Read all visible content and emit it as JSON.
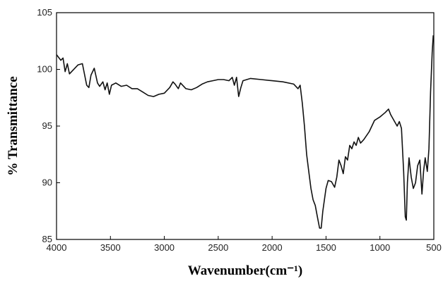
{
  "chart_data": {
    "type": "line",
    "xlabel": "Wavenumber(cm⁻¹)",
    "ylabel": "% Transmittance",
    "x": [
      4000,
      3960,
      3940,
      3920,
      3900,
      3880,
      3850,
      3800,
      3760,
      3720,
      3700,
      3680,
      3650,
      3620,
      3600,
      3570,
      3550,
      3530,
      3510,
      3490,
      3450,
      3400,
      3350,
      3300,
      3250,
      3200,
      3150,
      3100,
      3050,
      3000,
      2950,
      2920,
      2900,
      2870,
      2850,
      2800,
      2750,
      2700,
      2650,
      2600,
      2550,
      2500,
      2450,
      2400,
      2370,
      2350,
      2330,
      2310,
      2290,
      2270,
      2200,
      2100,
      2000,
      1900,
      1800,
      1760,
      1740,
      1720,
      1700,
      1680,
      1660,
      1640,
      1620,
      1600,
      1580,
      1560,
      1545,
      1530,
      1500,
      1480,
      1450,
      1420,
      1400,
      1380,
      1360,
      1340,
      1320,
      1300,
      1280,
      1260,
      1240,
      1220,
      1200,
      1180,
      1150,
      1100,
      1050,
      1000,
      950,
      920,
      900,
      870,
      840,
      820,
      800,
      780,
      765,
      755,
      745,
      730,
      710,
      690,
      670,
      650,
      630,
      610,
      595,
      580,
      560,
      545,
      530,
      515,
      505
    ],
    "values": [
      101.3,
      100.8,
      101.0,
      99.8,
      100.5,
      99.6,
      99.9,
      100.4,
      100.5,
      98.6,
      98.4,
      99.5,
      100.1,
      98.8,
      98.5,
      98.9,
      98.2,
      98.8,
      97.8,
      98.6,
      98.8,
      98.5,
      98.6,
      98.3,
      98.3,
      98.0,
      97.7,
      97.6,
      97.8,
      97.9,
      98.4,
      98.9,
      98.7,
      98.3,
      98.8,
      98.3,
      98.2,
      98.4,
      98.7,
      98.9,
      99.0,
      99.1,
      99.1,
      99.0,
      99.3,
      98.6,
      99.3,
      97.6,
      98.4,
      99.0,
      99.2,
      99.1,
      99.0,
      98.9,
      98.7,
      98.3,
      98.6,
      97.0,
      95.0,
      92.5,
      91.0,
      89.5,
      88.5,
      88.0,
      87.0,
      86.0,
      86.0,
      87.5,
      89.5,
      90.2,
      90.1,
      89.6,
      90.5,
      92.0,
      91.5,
      90.8,
      92.3,
      92.0,
      93.3,
      93.0,
      93.6,
      93.3,
      94.0,
      93.5,
      93.8,
      94.5,
      95.5,
      95.8,
      96.2,
      96.5,
      96.0,
      95.5,
      95.0,
      95.4,
      94.8,
      91.0,
      87.0,
      86.7,
      90.0,
      92.2,
      90.5,
      89.5,
      90.0,
      91.5,
      92.0,
      89.0,
      91.0,
      92.2,
      91.0,
      93.0,
      98.0,
      101.5,
      103.0
    ],
    "color": "#111111",
    "xlim": [
      4000,
      500
    ],
    "xticks": [
      4000,
      3500,
      3000,
      2500,
      2000,
      1500,
      1000,
      500
    ],
    "ylim": [
      85,
      105
    ],
    "yticks": [
      85,
      90,
      95,
      100,
      105
    ]
  }
}
